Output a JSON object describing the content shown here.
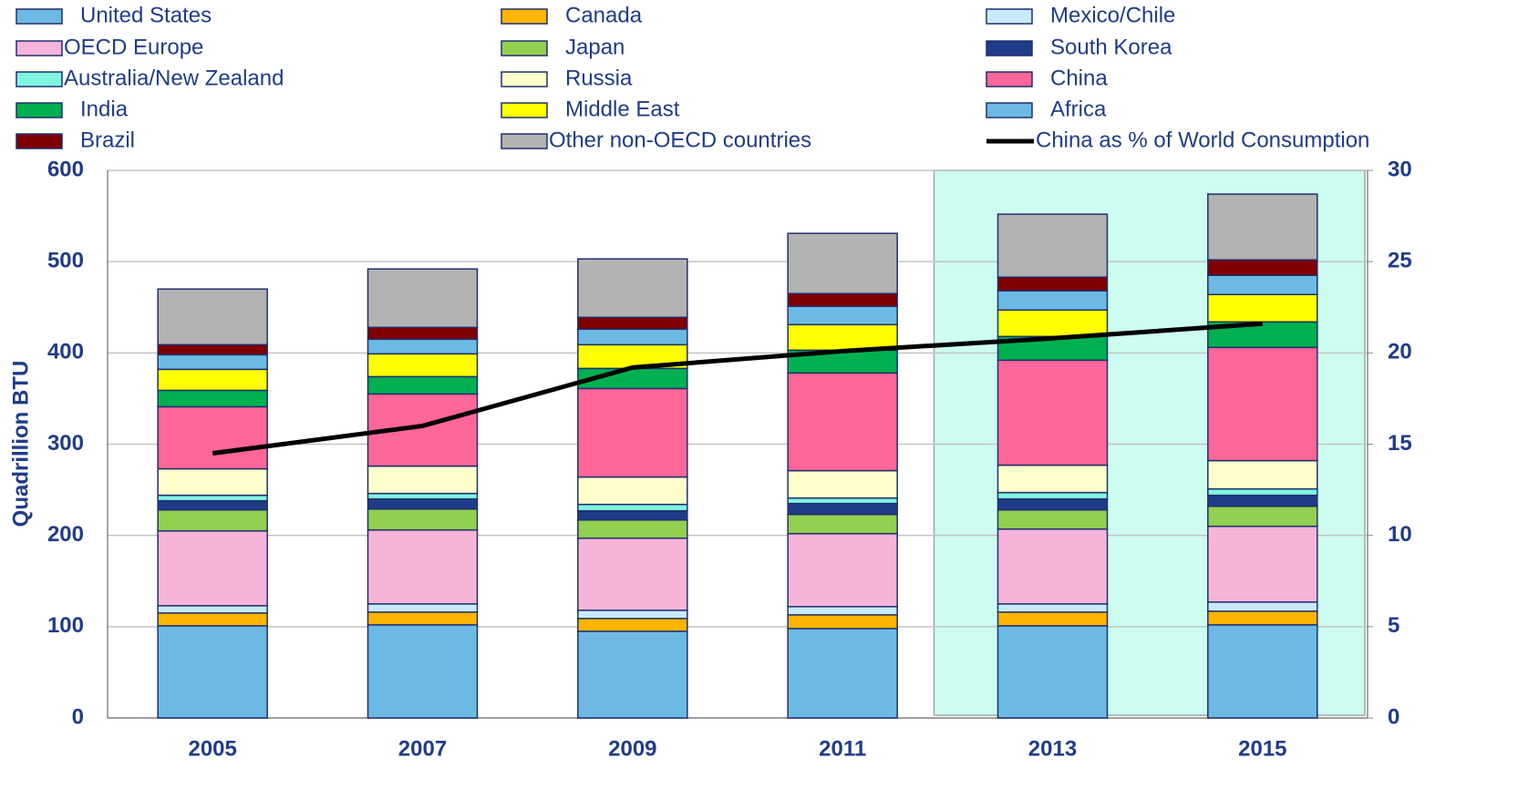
{
  "chart_data": {
    "type": "stacked_bar_line",
    "y_label": "Quadrillion BTU",
    "categories": [
      "2005",
      "2007",
      "2009",
      "2011",
      "2013",
      "2015"
    ],
    "ylim": [
      0,
      600
    ],
    "yticks": [
      0,
      100,
      200,
      300,
      400,
      500,
      600
    ],
    "y2lim": [
      0,
      30
    ],
    "y2ticks": [
      0,
      5,
      10,
      15,
      20,
      25,
      30
    ],
    "grid": true,
    "highlight": {
      "categories": [
        "2013",
        "2015"
      ],
      "color": "#cdfcf0"
    },
    "series": [
      {
        "name": "United States",
        "color": "#6cbae3",
        "values": [
          101,
          102,
          95,
          98,
          101,
          102
        ]
      },
      {
        "name": "Canada",
        "color": "#ffb400",
        "values": [
          14,
          14,
          14,
          15,
          15,
          15
        ]
      },
      {
        "name": "Mexico/Chile",
        "color": "#c8eafa",
        "values": [
          8,
          9,
          9,
          9,
          9,
          10
        ]
      },
      {
        "name": "OECD Europe",
        "color": "#f5b4d8",
        "values": [
          82,
          81,
          79,
          80,
          82,
          83
        ]
      },
      {
        "name": "Japan",
        "color": "#92d050",
        "values": [
          23,
          23,
          20,
          21,
          21,
          22
        ]
      },
      {
        "name": "South Korea",
        "color": "#1f3c88",
        "values": [
          10,
          11,
          10,
          12,
          12,
          12
        ]
      },
      {
        "name": "Australia/New Zealand",
        "color": "#7ff5e0",
        "values": [
          6,
          6,
          7,
          6,
          7,
          7
        ]
      },
      {
        "name": "Russia",
        "color": "#ffffcc",
        "values": [
          29,
          30,
          30,
          30,
          30,
          31
        ]
      },
      {
        "name": "China",
        "color": "#ff6699",
        "values": [
          68,
          79,
          97,
          107,
          115,
          124
        ]
      },
      {
        "name": "India",
        "color": "#00b050",
        "values": [
          18,
          19,
          22,
          25,
          26,
          28
        ]
      },
      {
        "name": "Middle East",
        "color": "#ffff00",
        "values": [
          23,
          25,
          26,
          28,
          29,
          30
        ]
      },
      {
        "name": "Africa",
        "color": "#6cbae3",
        "values": [
          16,
          16,
          17,
          20,
          21,
          21
        ]
      },
      {
        "name": "Brazil",
        "color": "#800000",
        "values": [
          11,
          13,
          13,
          14,
          15,
          17
        ]
      },
      {
        "name": "Other non-OECD countries",
        "color": "#b2b2b2",
        "values": [
          61,
          64,
          64,
          66,
          69,
          72
        ]
      },
      {
        "name": "China as % of World Consumption",
        "color": "#000000",
        "type": "line",
        "axis": "y2",
        "values": [
          14.5,
          16.0,
          19.2,
          20.1,
          20.8,
          21.6
        ]
      }
    ]
  }
}
